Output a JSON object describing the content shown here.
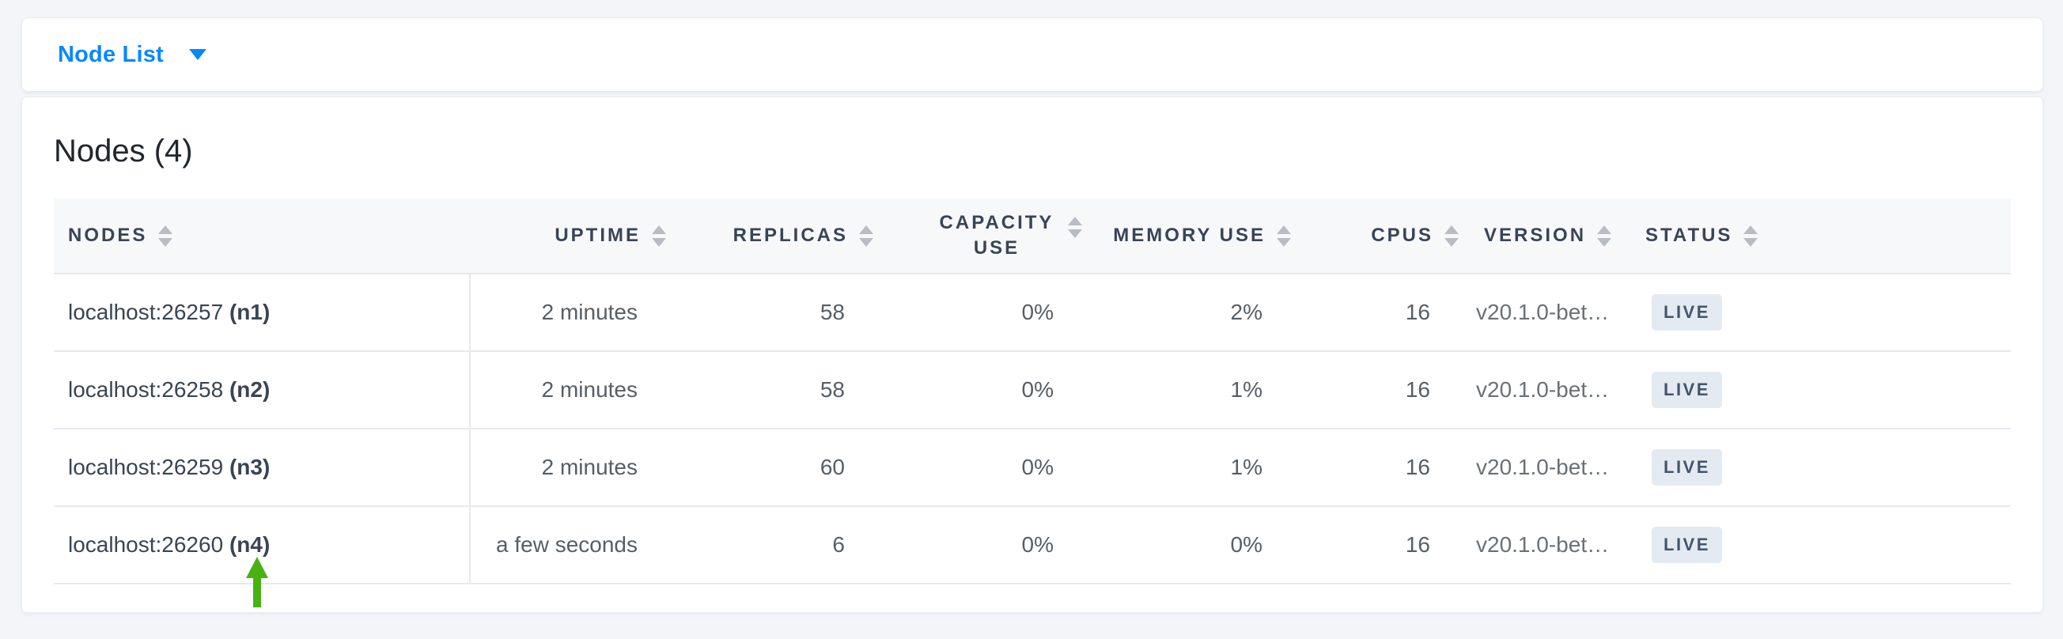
{
  "view_selector": {
    "label": "Node List",
    "caret_icon": "chevron-down-icon"
  },
  "page": {
    "title": "Nodes (4)"
  },
  "table": {
    "columns": [
      {
        "key": "nodes",
        "label": "NODES",
        "align": "left",
        "sort_icon": "sort-arrows-icon"
      },
      {
        "key": "uptime",
        "label": "UPTIME",
        "align": "right",
        "sort_icon": "sort-arrows-icon"
      },
      {
        "key": "replicas",
        "label": "REPLICAS",
        "align": "right",
        "sort_icon": "sort-arrows-icon"
      },
      {
        "key": "capacity_use",
        "label": "CAPACITY USE",
        "align": "right",
        "sort_icon": "sort-arrows-icon"
      },
      {
        "key": "memory_use",
        "label": "MEMORY USE",
        "align": "right",
        "sort_icon": "sort-arrows-icon"
      },
      {
        "key": "cpus",
        "label": "CPUS",
        "align": "right",
        "sort_icon": "sort-arrows-icon"
      },
      {
        "key": "version",
        "label": "VERSION",
        "align": "left",
        "sort_icon": "sort-arrows-icon"
      },
      {
        "key": "status",
        "label": "STATUS",
        "align": "left",
        "sort_icon": "sort-arrows-icon"
      }
    ],
    "rows": [
      {
        "address": "localhost:26257",
        "node_id": "(n1)",
        "uptime": "2 minutes",
        "replicas": "58",
        "capacity_use": "0%",
        "memory_use": "2%",
        "cpus": "16",
        "version": "v20.1.0-bet…",
        "status": "LIVE"
      },
      {
        "address": "localhost:26258",
        "node_id": "(n2)",
        "uptime": "2 minutes",
        "replicas": "58",
        "capacity_use": "0%",
        "memory_use": "1%",
        "cpus": "16",
        "version": "v20.1.0-bet…",
        "status": "LIVE"
      },
      {
        "address": "localhost:26259",
        "node_id": "(n3)",
        "uptime": "2 minutes",
        "replicas": "60",
        "capacity_use": "0%",
        "memory_use": "1%",
        "cpus": "16",
        "version": "v20.1.0-bet…",
        "status": "LIVE"
      },
      {
        "address": "localhost:26260",
        "node_id": "(n4)",
        "uptime": "a few seconds",
        "replicas": "6",
        "capacity_use": "0%",
        "memory_use": "0%",
        "cpus": "16",
        "version": "v20.1.0-bet…",
        "status": "LIVE"
      }
    ]
  },
  "annotation": {
    "icon": "green-up-arrow-icon",
    "points_at": "localhost:26260 (n4)",
    "color": "#48b213"
  },
  "colors": {
    "link_blue": "#0788ff",
    "header_text": "#394455",
    "badge_bg": "#e4eaf1",
    "badge_text": "#44546a",
    "arrow_green": "#48b213",
    "page_bg": "#f3f5f9"
  }
}
